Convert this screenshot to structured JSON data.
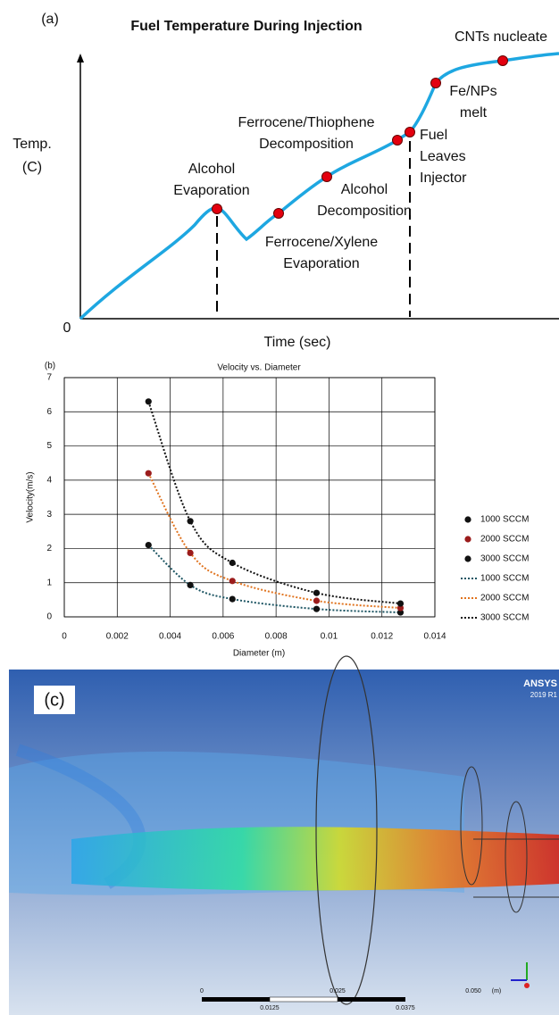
{
  "chart_data": [
    {
      "type": "schematic-line",
      "panel_label": "(a)",
      "title": "Fuel Temperature During Injection",
      "ylabel": [
        "Temp.",
        "(C)"
      ],
      "xlabel": "Time (sec)",
      "origin_label": "0",
      "color": "#1ea7e1",
      "marker_color": "#e3000f",
      "annotations": [
        {
          "lines": [
            "Alcohol",
            "Evaporation"
          ]
        },
        {
          "lines": [
            "Ferrocene/Xylene",
            "Evaporation"
          ]
        },
        {
          "lines": [
            "Alcohol",
            "Decomposition"
          ]
        },
        {
          "lines": [
            "Ferrocene/Thiophene",
            "Decomposition"
          ]
        },
        {
          "lines": [
            "Fuel",
            "Leaves",
            "Injector"
          ]
        },
        {
          "lines": [
            "Fe/NPs",
            "melt"
          ]
        },
        {
          "lines": [
            "CNTs nucleate"
          ]
        }
      ]
    },
    {
      "type": "scatter",
      "panel_label": "(b)",
      "title": "Velocity vs. Diameter",
      "xlabel": "Diameter (m)",
      "ylabel": "Velocity(m/s)",
      "x": [
        0.00318,
        0.00476,
        0.00635,
        0.00953,
        0.0127
      ],
      "series": [
        {
          "name": "1000 SCCM",
          "color": "#111111",
          "values": [
            2.1,
            0.93,
            0.52,
            0.23,
            0.13
          ]
        },
        {
          "name": "2000 SCCM",
          "color": "#9b1c1c",
          "values": [
            4.2,
            1.87,
            1.05,
            0.47,
            0.26
          ]
        },
        {
          "name": "3000 SCCM",
          "color": "#111111",
          "values": [
            6.3,
            2.8,
            1.58,
            0.7,
            0.39
          ]
        }
      ],
      "trendlines": [
        {
          "name": "1000 SCCM",
          "color": "#1d5563"
        },
        {
          "name": "2000 SCCM",
          "color": "#e0731e"
        },
        {
          "name": "3000 SCCM",
          "color": "#111111"
        }
      ],
      "xlim": [
        0,
        0.014
      ],
      "xticks": [
        0,
        0.002,
        0.004,
        0.006,
        0.008,
        0.01,
        0.012,
        0.014
      ],
      "ylim": [
        0,
        7
      ],
      "yticks": [
        0,
        1,
        2,
        3,
        4,
        5,
        6,
        7
      ],
      "grid": true,
      "legend": "right"
    }
  ],
  "image_panel": {
    "panel_label": "(c)",
    "logo": "ANSYS",
    "version": "2019 R1",
    "scale_top": [
      "0",
      "0.025",
      "0.050",
      "(m)"
    ],
    "scale_bottom": [
      "0.0125",
      "0.0375"
    ]
  }
}
